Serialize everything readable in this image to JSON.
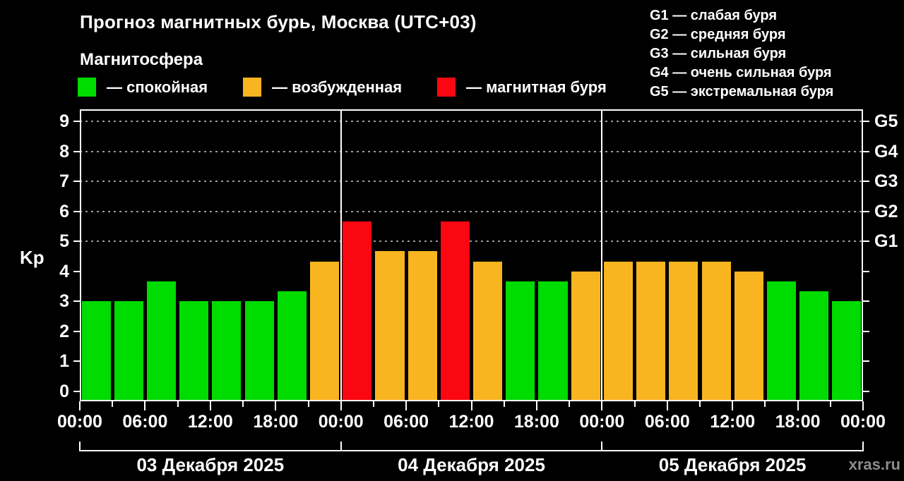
{
  "header": {
    "title": "Прогноз магнитных бурь, Москва (UTC+03)",
    "subtitle": "Магнитосфера",
    "watermark": "xras.ru"
  },
  "legend": {
    "items": [
      {
        "key": "quiet",
        "label": "— спокойная",
        "color": "#00DB00"
      },
      {
        "key": "excited",
        "label": "— возбужденная",
        "color": "#F9B51F"
      },
      {
        "key": "storm",
        "label": "— магнитная буря",
        "color": "#FB0711"
      }
    ]
  },
  "g_legend": {
    "lines": [
      "G1 — слабая буря",
      "G2 — средняя буря",
      "G3 — сильная буря",
      "G4 — очень сильная буря",
      "G5 — экстремальная буря"
    ]
  },
  "chart_data": {
    "type": "bar",
    "title": "Прогноз магнитных бурь, Москва (UTC+03)",
    "ylabel": "Kp",
    "ylim": [
      -0.33,
      9.4
    ],
    "y_ticks": [
      0,
      1,
      2,
      3,
      4,
      5,
      6,
      7,
      8,
      9
    ],
    "gridlines_at": [
      5,
      6,
      7,
      8,
      9
    ],
    "grid": "dashed, horizontal, only at G-levels",
    "legend_position": "top",
    "right_labels": [
      {
        "kp": 5,
        "label": "G1"
      },
      {
        "kp": 6,
        "label": "G2"
      },
      {
        "kp": 7,
        "label": "G3"
      },
      {
        "kp": 8,
        "label": "G4"
      },
      {
        "kp": 9,
        "label": "G5"
      }
    ],
    "x_tick_labels": [
      "00:00",
      "06:00",
      "12:00",
      "18:00",
      "00:00",
      "06:00",
      "12:00",
      "18:00",
      "00:00",
      "06:00",
      "12:00",
      "18:00",
      "00:00"
    ],
    "colors": {
      "quiet": "#00DB00",
      "excited": "#F9B51F",
      "storm": "#FB0711"
    },
    "days": [
      {
        "date": "03 Декабря 2025",
        "bars": [
          {
            "time": "00:00",
            "kp": 3.0,
            "state": "quiet"
          },
          {
            "time": "03:00",
            "kp": 3.0,
            "state": "quiet"
          },
          {
            "time": "06:00",
            "kp": 3.67,
            "state": "quiet"
          },
          {
            "time": "09:00",
            "kp": 3.0,
            "state": "quiet"
          },
          {
            "time": "12:00",
            "kp": 3.0,
            "state": "quiet"
          },
          {
            "time": "15:00",
            "kp": 3.0,
            "state": "quiet"
          },
          {
            "time": "18:00",
            "kp": 3.33,
            "state": "quiet"
          },
          {
            "time": "21:00",
            "kp": 4.33,
            "state": "excited"
          }
        ]
      },
      {
        "date": "04 Декабря 2025",
        "bars": [
          {
            "time": "00:00",
            "kp": 5.67,
            "state": "storm"
          },
          {
            "time": "03:00",
            "kp": 4.67,
            "state": "excited"
          },
          {
            "time": "06:00",
            "kp": 4.67,
            "state": "excited"
          },
          {
            "time": "09:00",
            "kp": 5.67,
            "state": "storm"
          },
          {
            "time": "12:00",
            "kp": 4.33,
            "state": "excited"
          },
          {
            "time": "15:00",
            "kp": 3.67,
            "state": "quiet"
          },
          {
            "time": "18:00",
            "kp": 3.67,
            "state": "quiet"
          },
          {
            "time": "21:00",
            "kp": 4.0,
            "state": "excited"
          }
        ]
      },
      {
        "date": "05 Декабря 2025",
        "bars": [
          {
            "time": "00:00",
            "kp": 4.33,
            "state": "excited"
          },
          {
            "time": "03:00",
            "kp": 4.33,
            "state": "excited"
          },
          {
            "time": "06:00",
            "kp": 4.33,
            "state": "excited"
          },
          {
            "time": "09:00",
            "kp": 4.33,
            "state": "excited"
          },
          {
            "time": "12:00",
            "kp": 4.0,
            "state": "excited"
          },
          {
            "time": "15:00",
            "kp": 3.67,
            "state": "quiet"
          },
          {
            "time": "18:00",
            "kp": 3.33,
            "state": "quiet"
          },
          {
            "time": "21:00",
            "kp": 3.0,
            "state": "quiet"
          }
        ]
      }
    ]
  }
}
